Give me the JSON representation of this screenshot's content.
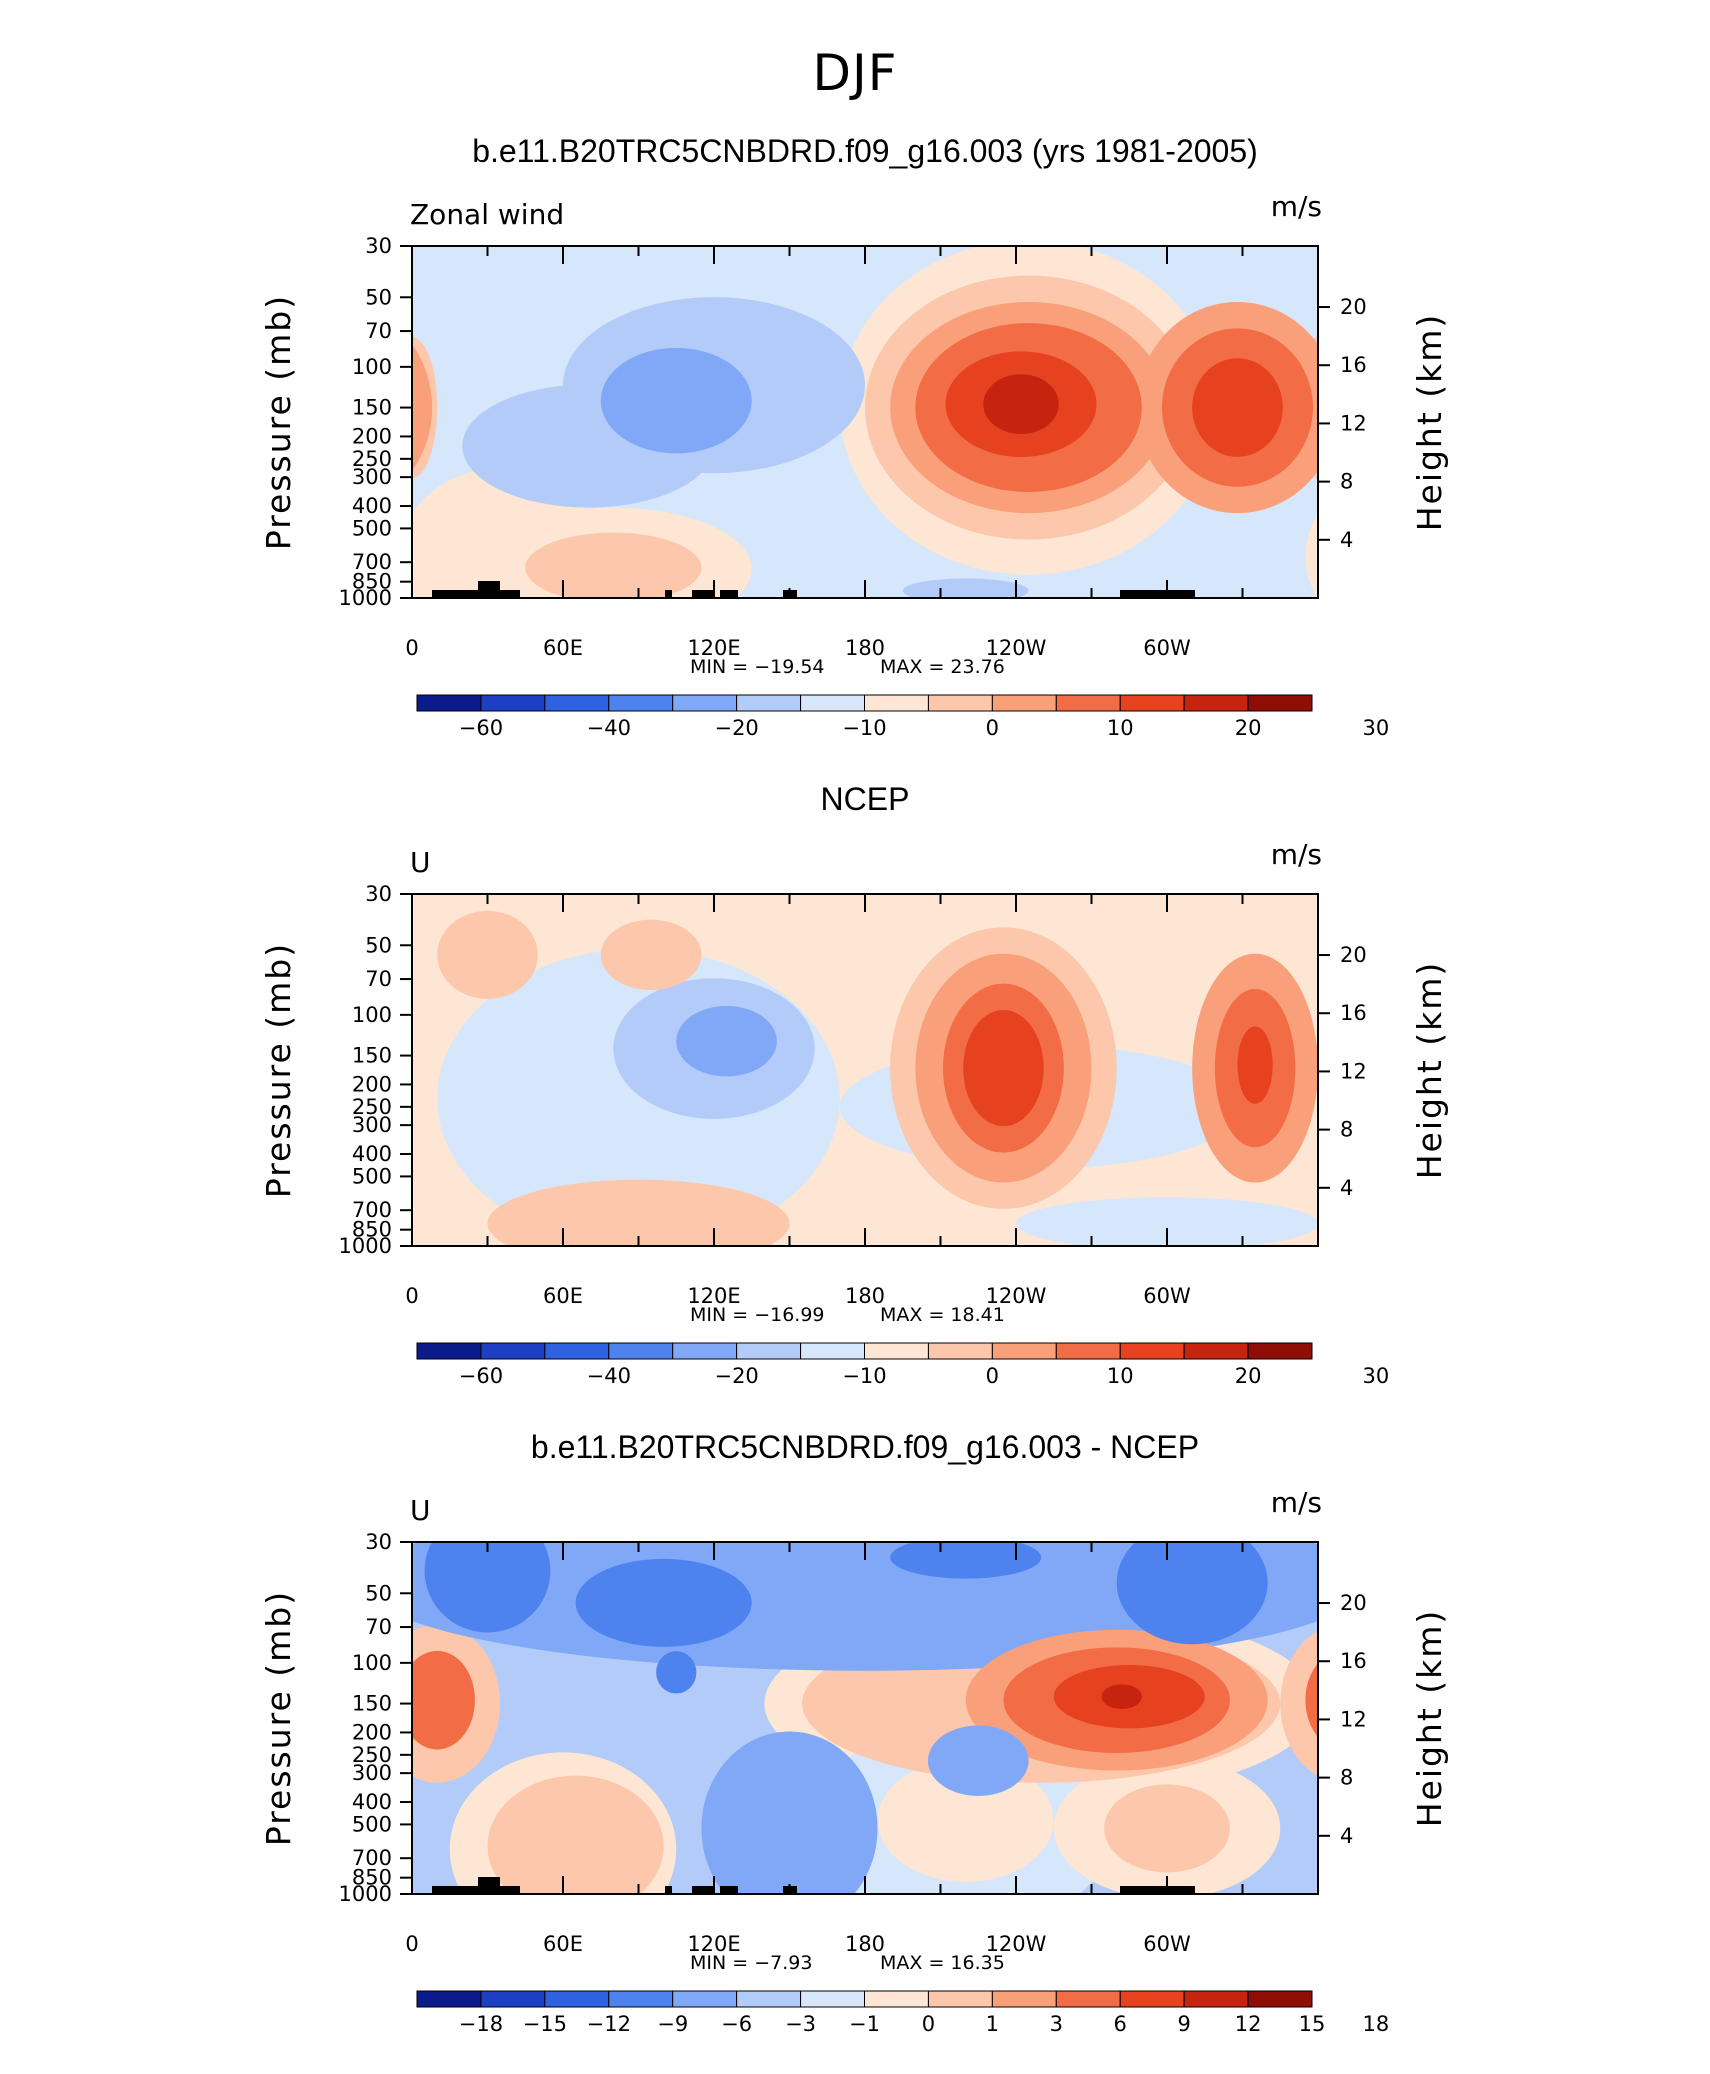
{
  "figure_title": "DJF",
  "colors": {
    "full_scale": [
      "#0b1b8c",
      "#1d3fc4",
      "#2f62e3",
      "#4e82ee",
      "#80a8f6",
      "#b3cbf9",
      "#d6e6fb",
      "#fde6d4",
      "#fcc7aa",
      "#f9a07a",
      "#f26c45",
      "#e7421f",
      "#c6240f",
      "#8e0d05"
    ],
    "diff_scale": [
      "#0b1b8c",
      "#1d3fc4",
      "#2f62e3",
      "#4e82ee",
      "#80a8f6",
      "#b3cbf9",
      "#d6e6fb",
      "#fde6d4",
      "#fcc7aa",
      "#f9a07a",
      "#f26c45",
      "#e7421f",
      "#c6240f",
      "#8e0d05"
    ]
  },
  "chart_data": [
    {
      "type": "heatmap",
      "title": "b.e11.B20TRC5CNBDRD.f09_g16.003 (yrs 1981-2005)",
      "left_label": "Zonal wind",
      "units": "m/s",
      "ylabel": "Pressure (mb)",
      "ylabel_right": "Height (km)",
      "min_label": "MIN = −19.54",
      "max_label": "MAX = 23.76",
      "x_ticks": [
        "0",
        "60E",
        "120E",
        "180",
        "120W",
        "60W"
      ],
      "y_ticks": [
        "30",
        "50",
        "70",
        "100",
        "150",
        "200",
        "250",
        "300",
        "400",
        "500",
        "700",
        "850",
        "1000"
      ],
      "y_ticks_right": [
        "20",
        "16",
        "12",
        "8",
        "4"
      ],
      "colorbar_labels": [
        "−60",
        "−40",
        "−20",
        "−10",
        "0",
        "10",
        "20",
        "30"
      ],
      "background_level": 6,
      "blobs": [
        {
          "lon": 35,
          "p": 660,
          "rlon": 40,
          "rp": 0.5,
          "level": 7
        },
        {
          "lon": 120,
          "p": 120,
          "rlon": 60,
          "rp": 0.5,
          "level": 5
        },
        {
          "lon": 105,
          "p": 140,
          "rlon": 30,
          "rp": 0.3,
          "level": 4
        },
        {
          "lon": 70,
          "p": 220,
          "rlon": 50,
          "rp": 0.35,
          "level": 5
        },
        {
          "lon": 245,
          "p": 150,
          "rlon": 75,
          "rp": 0.95,
          "level": 7
        },
        {
          "lon": 245,
          "p": 150,
          "rlon": 65,
          "rp": 0.75,
          "level": 8
        },
        {
          "lon": 245,
          "p": 150,
          "rlon": 55,
          "rp": 0.6,
          "level": 9
        },
        {
          "lon": 245,
          "p": 150,
          "rlon": 45,
          "rp": 0.48,
          "level": 10
        },
        {
          "lon": 242,
          "p": 145,
          "rlon": 30,
          "rp": 0.3,
          "level": 11
        },
        {
          "lon": 242,
          "p": 145,
          "rlon": 15,
          "rp": 0.17,
          "level": 12
        },
        {
          "lon": 328,
          "p": 150,
          "rlon": 40,
          "rp": 0.6,
          "level": 9
        },
        {
          "lon": 328,
          "p": 150,
          "rlon": 30,
          "rp": 0.45,
          "level": 10
        },
        {
          "lon": 328,
          "p": 150,
          "rlon": 18,
          "rp": 0.28,
          "level": 11
        },
        {
          "lon": 0,
          "p": 150,
          "rlon": 10,
          "rp": 0.4,
          "level": 8
        },
        {
          "lon": 80,
          "p": 750,
          "rlon": 55,
          "rp": 0.35,
          "level": 7
        },
        {
          "lon": 80,
          "p": 740,
          "rlon": 35,
          "rp": 0.2,
          "level": 8
        },
        {
          "lon": 220,
          "p": 930,
          "rlon": 25,
          "rp": 0.07,
          "level": 5
        }
      ]
    },
    {
      "type": "heatmap",
      "title": "NCEP",
      "left_label": "U",
      "units": "m/s",
      "ylabel": "Pressure (mb)",
      "ylabel_right": "Height (km)",
      "min_label": "MIN = −16.99",
      "max_label": "MAX = 18.41",
      "x_ticks": [
        "0",
        "60E",
        "120E",
        "180",
        "120W",
        "60W"
      ],
      "y_ticks": [
        "30",
        "50",
        "70",
        "100",
        "150",
        "200",
        "250",
        "300",
        "400",
        "500",
        "700",
        "850",
        "1000"
      ],
      "y_ticks_right": [
        "20",
        "16",
        "12",
        "8",
        "4"
      ],
      "colorbar_labels": [
        "−60",
        "−40",
        "−20",
        "−10",
        "0",
        "10",
        "20",
        "30"
      ],
      "background_level": 7,
      "blobs": [
        {
          "lon": 90,
          "p": 230,
          "rlon": 80,
          "rp": 0.85,
          "level": 6
        },
        {
          "lon": 120,
          "p": 140,
          "rlon": 40,
          "rp": 0.4,
          "level": 5
        },
        {
          "lon": 125,
          "p": 130,
          "rlon": 20,
          "rp": 0.2,
          "level": 4
        },
        {
          "lon": 30,
          "p": 55,
          "rlon": 20,
          "rp": 0.25,
          "level": 8
        },
        {
          "lon": 95,
          "p": 55,
          "rlon": 20,
          "rp": 0.2,
          "level": 8
        },
        {
          "lon": 250,
          "p": 250,
          "rlon": 80,
          "rp": 0.35,
          "level": 6
        },
        {
          "lon": 300,
          "p": 800,
          "rlon": 60,
          "rp": 0.15,
          "level": 6
        },
        {
          "lon": 235,
          "p": 170,
          "rlon": 45,
          "rp": 0.8,
          "level": 8
        },
        {
          "lon": 235,
          "p": 170,
          "rlon": 35,
          "rp": 0.65,
          "level": 9
        },
        {
          "lon": 235,
          "p": 170,
          "rlon": 24,
          "rp": 0.48,
          "level": 10
        },
        {
          "lon": 235,
          "p": 170,
          "rlon": 16,
          "rp": 0.33,
          "level": 11
        },
        {
          "lon": 335,
          "p": 170,
          "rlon": 25,
          "rp": 0.65,
          "level": 9
        },
        {
          "lon": 335,
          "p": 170,
          "rlon": 16,
          "rp": 0.45,
          "level": 10
        },
        {
          "lon": 335,
          "p": 165,
          "rlon": 7,
          "rp": 0.22,
          "level": 11
        },
        {
          "lon": 90,
          "p": 800,
          "rlon": 60,
          "rp": 0.25,
          "level": 8
        }
      ]
    },
    {
      "type": "heatmap",
      "title": "b.e11.B20TRC5CNBDRD.f09_g16.003 - NCEP",
      "left_label": "U",
      "units": "m/s",
      "ylabel": "Pressure (mb)",
      "ylabel_right": "Height (km)",
      "min_label": "MIN = −7.93",
      "max_label": "MAX = 16.35",
      "x_ticks": [
        "0",
        "60E",
        "120E",
        "180",
        "120W",
        "60W"
      ],
      "y_ticks": [
        "30",
        "50",
        "70",
        "100",
        "150",
        "200",
        "250",
        "300",
        "400",
        "500",
        "700",
        "850",
        "1000"
      ],
      "y_ticks_right": [
        "20",
        "16",
        "12",
        "8",
        "4"
      ],
      "colorbar_labels": [
        "−18",
        "−15",
        "−12",
        "−9",
        "−6",
        "−3",
        "−1",
        "0",
        "1",
        "3",
        "6",
        "9",
        "12",
        "15",
        "18"
      ],
      "background_level": 5,
      "blobs": [
        {
          "lon": 180,
          "p": 45,
          "rlon": 200,
          "rp": 0.5,
          "level": 4
        },
        {
          "lon": 30,
          "p": 40,
          "rlon": 25,
          "rp": 0.35,
          "level": 3
        },
        {
          "lon": 100,
          "p": 55,
          "rlon": 35,
          "rp": 0.25,
          "level": 3
        },
        {
          "lon": 310,
          "p": 45,
          "rlon": 30,
          "rp": 0.35,
          "level": 3
        },
        {
          "lon": 220,
          "p": 35,
          "rlon": 30,
          "rp": 0.12,
          "level": 3
        },
        {
          "lon": 250,
          "p": 150,
          "rlon": 110,
          "rp": 0.55,
          "level": 7
        },
        {
          "lon": 250,
          "p": 150,
          "rlon": 95,
          "rp": 0.45,
          "level": 8
        },
        {
          "lon": 280,
          "p": 145,
          "rlon": 60,
          "rp": 0.4,
          "level": 9
        },
        {
          "lon": 280,
          "p": 145,
          "rlon": 45,
          "rp": 0.3,
          "level": 10
        },
        {
          "lon": 285,
          "p": 140,
          "rlon": 30,
          "rp": 0.18,
          "level": 11
        },
        {
          "lon": 282,
          "p": 140,
          "rlon": 8,
          "rp": 0.07,
          "level": 12
        },
        {
          "lon": 10,
          "p": 150,
          "rlon": 25,
          "rp": 0.45,
          "level": 8
        },
        {
          "lon": 10,
          "p": 145,
          "rlon": 15,
          "rp": 0.28,
          "level": 10
        },
        {
          "lon": 60,
          "p": 640,
          "rlon": 45,
          "rp": 0.55,
          "level": 7
        },
        {
          "lon": 65,
          "p": 620,
          "rlon": 35,
          "rp": 0.4,
          "level": 8
        },
        {
          "lon": 220,
          "p": 500,
          "rlon": 60,
          "rp": 0.6,
          "level": 6
        },
        {
          "lon": 220,
          "p": 480,
          "rlon": 35,
          "rp": 0.35,
          "level": 7
        },
        {
          "lon": 300,
          "p": 520,
          "rlon": 45,
          "rp": 0.4,
          "level": 7
        },
        {
          "lon": 300,
          "p": 520,
          "rlon": 25,
          "rp": 0.25,
          "level": 8
        },
        {
          "lon": 225,
          "p": 265,
          "rlon": 20,
          "rp": 0.2,
          "level": 4
        },
        {
          "lon": 150,
          "p": 520,
          "rlon": 35,
          "rp": 0.55,
          "level": 4
        },
        {
          "lon": 105,
          "p": 110,
          "rlon": 8,
          "rp": 0.12,
          "level": 3
        }
      ]
    }
  ]
}
